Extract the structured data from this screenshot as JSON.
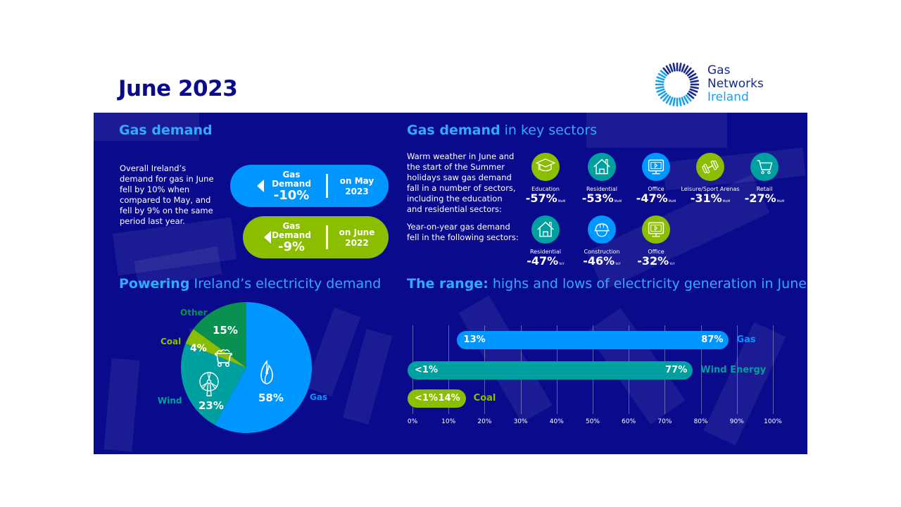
{
  "header": {
    "title": "June 2023",
    "logo": {
      "line1": "Gas",
      "line2": "Networks",
      "line3": "Ireland"
    }
  },
  "colors": {
    "panel": "#0a0a8c",
    "heading": "#33aaff",
    "gas_blue": "#0096ff",
    "teal": "#00a0a0",
    "green": "#8cbe00",
    "other_green": "#0a9050"
  },
  "gas_demand": {
    "heading": "Gas demand",
    "body": "Overall Ireland’s demand for gas in June fell by 10% when compared to May, and fell by 9% on the same period last year.",
    "pills": [
      {
        "label_line1": "Gas",
        "label_line2": "Demand",
        "value": "-10%",
        "period_line1": "on May",
        "period_line2": "2023",
        "icon": "arrow-left-icon"
      },
      {
        "label_line1": "Gas",
        "label_line2": "Demand",
        "value": "-9%",
        "period_line1": "on June",
        "period_line2": "2022",
        "icon": "arrow-left-icon"
      }
    ]
  },
  "sectors": {
    "heading_bold": "Gas demand",
    "heading_light": " in key sectors",
    "mom_text": "Warm weather in June and the start of the Summer holidays saw gas demand fall in a number of sectors, including the education and residential sectors:",
    "yoy_text": "Year-on-year gas demand fell in the following sectors:",
    "mom_items": [
      {
        "name": "Education",
        "value": "-57%",
        "suffix": "MoM",
        "icon": "graduation-cap-icon"
      },
      {
        "name": "Residential",
        "value": "-53%",
        "suffix": "MoM",
        "icon": "house-icon"
      },
      {
        "name": "Office",
        "value": "-47%",
        "suffix": "MoM",
        "icon": "monitor-icon"
      },
      {
        "name": "Leisure/Sport Arenas",
        "value": "-31%",
        "suffix": "MoM",
        "icon": "dumbbell-icon"
      },
      {
        "name": "Retail",
        "value": "-27%",
        "suffix": "MoM",
        "icon": "shopping-cart-icon"
      }
    ],
    "yoy_items": [
      {
        "name": "Residential",
        "value": "-47%",
        "suffix": "YoY",
        "icon": "house-icon"
      },
      {
        "name": "Construction",
        "value": "-46%",
        "suffix": "YoY",
        "icon": "hard-hat-icon"
      },
      {
        "name": "Office",
        "value": "-32%",
        "suffix": "YoY",
        "icon": "monitor-icon"
      }
    ]
  },
  "chart_data": [
    {
      "type": "pie",
      "title_bold": "Powering",
      "title_light": " Ireland’s electricity demand",
      "slices": [
        {
          "label": "Gas",
          "value": 58,
          "display": "58%",
          "color": "#0096ff",
          "icon": "flame-icon"
        },
        {
          "label": "Wind",
          "value": 23,
          "display": "23%",
          "color": "#00a0a0",
          "icon": "wind-turbine-icon"
        },
        {
          "label": "Coal",
          "value": 4,
          "display": "4%",
          "color": "#8cbe00",
          "icon": "coal-cart-icon"
        },
        {
          "label": "Other",
          "value": 15,
          "display": "15%",
          "color": "#0a9050"
        }
      ]
    },
    {
      "type": "bar",
      "subtype": "range",
      "title_bold": "The range:",
      "title_light": " highs and lows of electricity generation in June",
      "xlim": [
        0,
        100
      ],
      "grid": true,
      "x_ticks": [
        "0%",
        "10%",
        "20%",
        "30%",
        "40%",
        "50%",
        "60%",
        "70%",
        "80%",
        "90%",
        "100%"
      ],
      "series": [
        {
          "name": "Gas",
          "low": 13,
          "high": 87,
          "low_label": "13%",
          "high_label": "87%",
          "color": "#0096ff"
        },
        {
          "name": "Wind Energy",
          "low": 0,
          "high": 77,
          "low_label": "<1%",
          "high_label": "77%",
          "color": "#00a0a0"
        },
        {
          "name": "Coal",
          "low": 0,
          "high": 14,
          "low_label": "<1%",
          "high_label": "14%",
          "color": "#8cbe00"
        }
      ]
    }
  ]
}
